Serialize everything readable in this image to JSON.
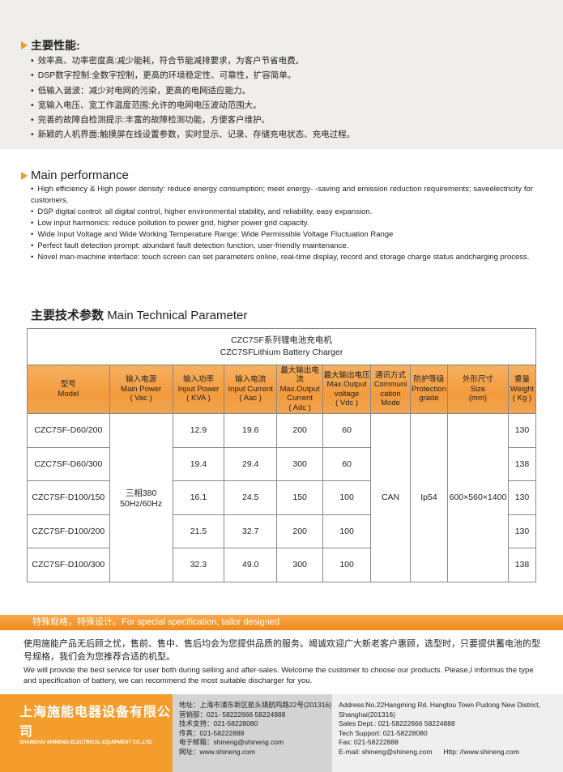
{
  "features_cn": {
    "title": "主要性能:",
    "items": [
      "效率高、功率密度高:减少能耗，符合节能减排要求，为客户节省电费。",
      "DSP数字控制:全数字控制，更高的环境稳定性、可靠性，扩容简单。",
      "低输入谐波：减少对电网的污染，更高的电网适应能力。",
      "宽输入电压、宽工作温度范围:允许的电网电压波动范围大。",
      "完善的故障自检测提示:丰富的故障检测功能，方便客户维护。",
      "新颖的人机界面:触摸屏在线设置参数，实时显示、记录、存储充电状态、充电过程。"
    ]
  },
  "features_en": {
    "title": "Main performance",
    "items": [
      "High efficiency & High power density: reduce energy consumption; meet energy- -saving and emission reduction requirements; saveelectricity for customers.",
      "DSP digital control: all digital control, higher environmental stability, and reliability, easy expansion.",
      "Low input harmonics: reduce pollution to power grid, higher power grid capacity.",
      "Wide Input Voltage and Wide Working Temperature Range: Wide Permissible Voltage Fluctuation Range",
      "Perfect fault detection prompt: abundant fault detection function, user-friendly maintenance.",
      "Novel man-machine interface: touch screen can set parameters online, real-time display, record and storage charge status andcharging process."
    ]
  },
  "table": {
    "section_title_cn": "主要技术参数",
    "section_title_en": "Main Technical Parameter",
    "caption_cn": "CZC7SF系列锂电池充电机",
    "caption_en": "CZC7SFLithium Battery Charger",
    "headers": [
      "型号\nModel",
      "输入电源\nMain Power\n( Vac )",
      "输入功率\nInput Power\n( KVA )",
      "输入电流\nInput Current\n( Aac )",
      "最大输出电流\nMax.Output\nCurrent\n( Adc )",
      "最大输出电压\nMax.Output\nvoltage\n( Vdc )",
      "通讯方式\nCommuni\ncation\nMode",
      "防护等级\nProtection\ngrade",
      "外形尺寸\nSize\n(mm)",
      "重量\nWeight\n( Kg )"
    ],
    "shared": {
      "main_power": "三相380\n50Hz/60Hz",
      "comm": "CAN",
      "protection": "Ip54",
      "size": "600×560×1400"
    },
    "rows": [
      [
        "CZC7SF-D60/200",
        "12.9",
        "19.6",
        "200",
        "60",
        "130"
      ],
      [
        "CZC7SF-D60/300",
        "19.4",
        "29.4",
        "300",
        "60",
        "138"
      ],
      [
        "CZC7SF-D100/150",
        "16.1",
        "24.5",
        "150",
        "100",
        "130"
      ],
      [
        "CZC7SF-D100/200",
        "21.5",
        "32.7",
        "200",
        "100",
        "130"
      ],
      [
        "CZC7SF-D100/300",
        "32.3",
        "49.0",
        "300",
        "100",
        "138"
      ]
    ]
  },
  "banner": "特殊规格，特殊设计。For special specification, tailor designed",
  "note": {
    "cn": "使用施能产品无后顾之忧，售前、售中、售后均会为您提供品质的服务。竭诚欢迎广大新老客户惠顾，选型时，只要提供蓄电池的型号规格，我们会为您推荐合适的机型。",
    "en": "We will provide the best service for user both during selling and after-sales. Welcome the customer to choose our products. Please,I informus the type and specification of battery, we can recommend the most suitable discharger for you."
  },
  "footer": {
    "company_cn": "上海施能电器设备有限公司",
    "company_en": "SHANGHAI SHINENG ELECTRICAL EQUIPMENT CO.,LTD.",
    "cn_lines": [
      "地址：上海市浦东新区航头镇航鸣路22号(201316)",
      "营销部：021- 58222666 58224888",
      "技术支持：021-58228080",
      "传真：021-58222888",
      "电子邮箱：shineng@shineng.com",
      "网址：www.shineng.com"
    ],
    "en_lines": [
      "Address:No.22Hangming Rd. Hangtou Town Pudong New District,",
      "Shanghai(201316)",
      "Sales Dept.: 021-58222666 58224888",
      "Tech Support: 021-58228080",
      "Fax: 021-58222888"
    ],
    "email": "E-mail: shineng@shineng.com",
    "web": "Http: //www.shineng.com"
  },
  "colors": {
    "accent": "#f39a25",
    "footer_orange": "#f49d2c"
  }
}
